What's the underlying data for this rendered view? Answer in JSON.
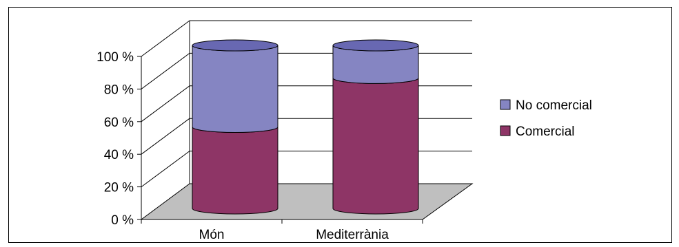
{
  "chart_data": {
    "type": "bar",
    "stacked": true,
    "stack_mode": "percent",
    "style": "3d-cylinder",
    "categories": [
      "Món",
      "Mediterrània"
    ],
    "series": [
      {
        "name": "Comercial",
        "values": [
          50,
          80
        ]
      },
      {
        "name": "No comercial",
        "values": [
          50,
          20
        ]
      }
    ],
    "y_ticks": [
      "0 %",
      "20 %",
      "40 %",
      "60 %",
      "80 %",
      "100 %"
    ],
    "ylim": [
      0,
      100
    ],
    "grid": true,
    "legend_position": "right",
    "colors": {
      "Comercial": "#8e3566",
      "Comercial_top": "#9b4373",
      "No comercial": "#8585c2",
      "No comercial_top": "#6868b2",
      "floor": "#bfbfbf",
      "frame": "#000000"
    }
  }
}
